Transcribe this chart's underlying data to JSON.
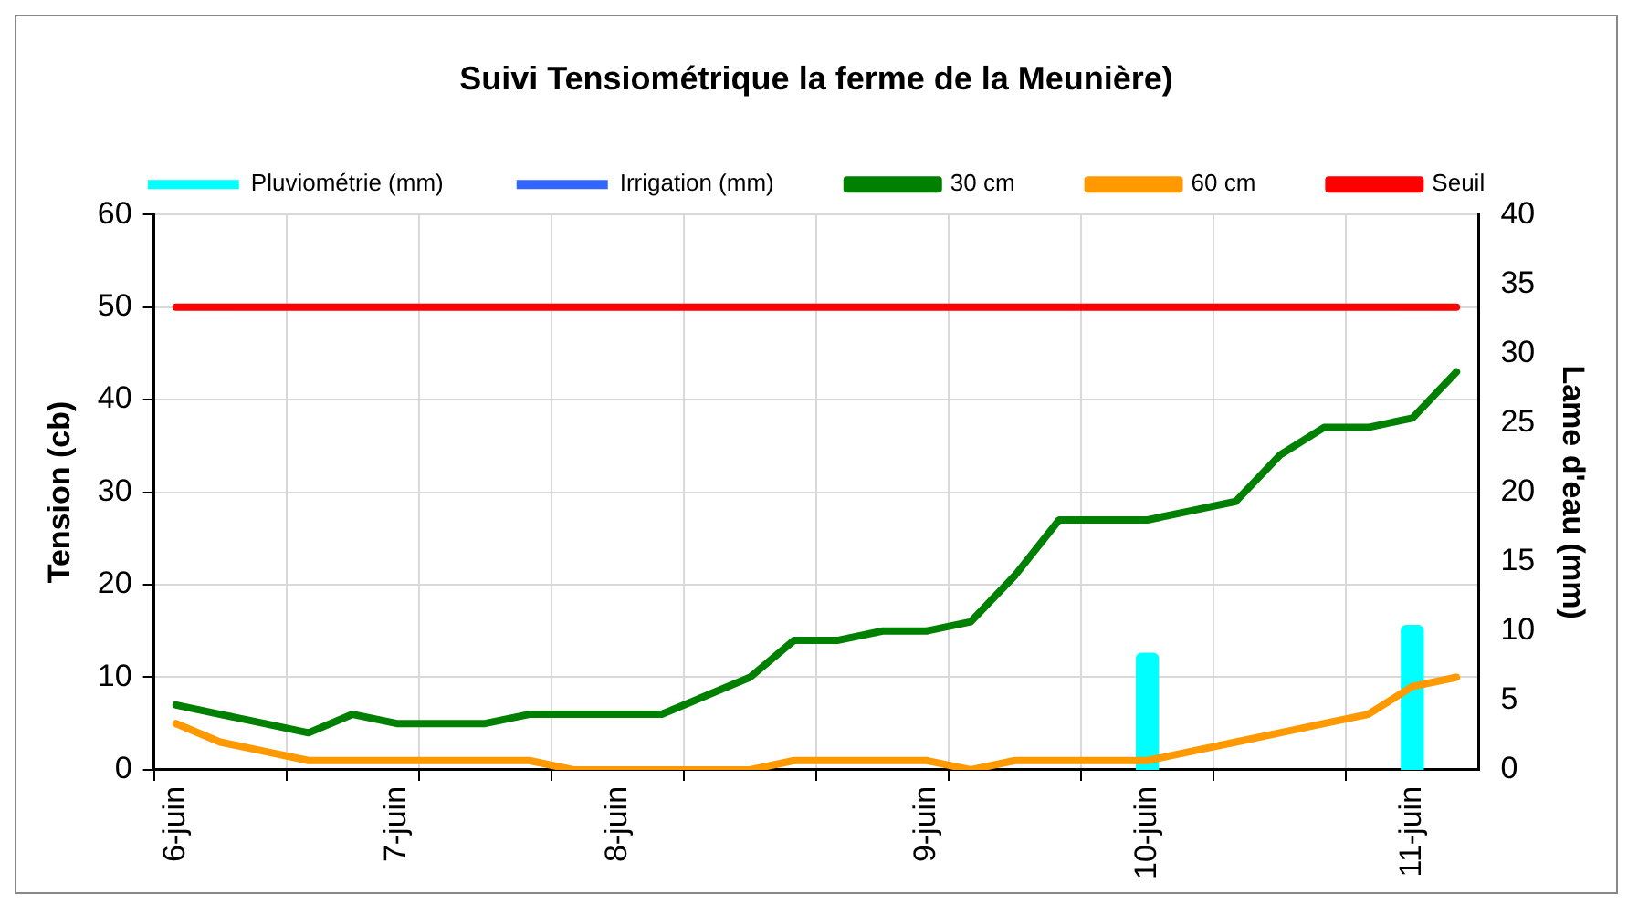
{
  "chart_data": {
    "type": "line",
    "title": "Suivi Tensiométrique la ferme de la Meunière)",
    "ylabel": "Tension (cb)",
    "y2label": "Lame d'eau (mm)",
    "categories": [
      "6-juin",
      null,
      null,
      null,
      null,
      "7-juin",
      null,
      null,
      null,
      null,
      "8-juin",
      null,
      null,
      null,
      null,
      null,
      null,
      "9-juin",
      null,
      null,
      null,
      null,
      "10-juin",
      null,
      null,
      null,
      null,
      null,
      "11-juin",
      null
    ],
    "series": [
      {
        "name": "Pluviométrie (mm)",
        "type": "bar",
        "axis": "y2",
        "color": "#00ffff",
        "values": [
          null,
          null,
          null,
          null,
          null,
          null,
          null,
          null,
          null,
          null,
          null,
          null,
          null,
          null,
          null,
          null,
          null,
          null,
          null,
          null,
          null,
          null,
          8.4,
          null,
          null,
          null,
          null,
          null,
          10.4,
          null
        ]
      },
      {
        "name": "Irrigation (mm)",
        "type": "bar",
        "axis": "y2",
        "color": "#3366ff",
        "values": [
          null,
          null,
          null,
          null,
          null,
          null,
          null,
          null,
          null,
          null,
          null,
          null,
          null,
          null,
          null,
          null,
          null,
          null,
          null,
          null,
          null,
          null,
          null,
          null,
          null,
          null,
          null,
          null,
          null,
          null
        ]
      },
      {
        "name": "30 cm",
        "color": "#008000",
        "values": [
          7,
          6,
          5,
          4,
          6,
          5,
          5,
          5,
          6,
          6,
          6,
          6,
          8,
          10,
          14,
          14,
          15,
          15,
          16,
          21,
          27,
          27,
          27,
          28,
          29,
          34,
          37,
          37,
          38,
          43
        ]
      },
      {
        "name": "60 cm",
        "color": "#ff9900",
        "values": [
          5,
          3,
          2,
          1,
          1,
          1,
          1,
          1,
          1,
          0,
          0,
          0,
          0,
          0,
          1,
          1,
          1,
          1,
          0,
          1,
          1,
          1,
          1,
          2,
          3,
          4,
          5,
          6,
          9,
          10
        ]
      },
      {
        "name": "Seuil",
        "color": "#ff0000",
        "values": [
          50,
          50,
          50,
          50,
          50,
          50,
          50,
          50,
          50,
          50,
          50,
          50,
          50,
          50,
          50,
          50,
          50,
          50,
          50,
          50,
          50,
          50,
          50,
          50,
          50,
          50,
          50,
          50,
          50,
          50
        ]
      }
    ],
    "ylim": [
      0,
      60
    ],
    "yticks": [
      0,
      10,
      20,
      30,
      40,
      50,
      60
    ],
    "y2lim": [
      0,
      40
    ],
    "y2ticks": [
      0,
      5,
      10,
      15,
      20,
      25,
      30,
      35,
      40
    ],
    "grid": true,
    "legend": "top",
    "marker": "none",
    "line_style": "solid"
  }
}
